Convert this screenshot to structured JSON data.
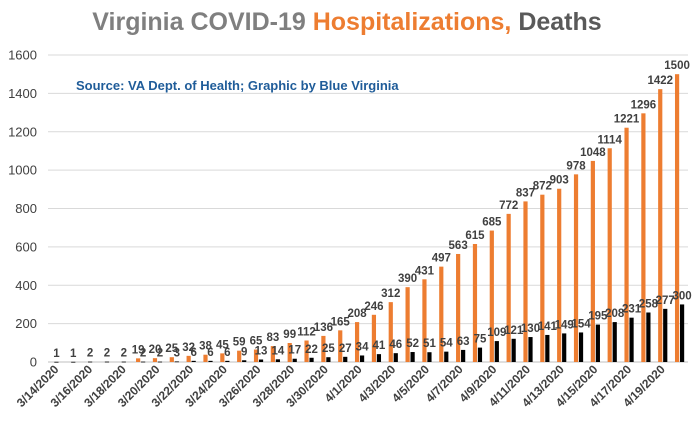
{
  "title": {
    "part1": "Virginia COVID-19 ",
    "part2": "Hospitalizations,",
    "part3": " Deaths"
  },
  "source_note": "Source: VA Dept. of Health; Graphic by Blue Virginia",
  "colors": {
    "hospitalizations": "#ed7d31",
    "deaths": "#000000",
    "grid": "#d9d9d9",
    "axis": "#bfbfbf"
  },
  "chart_data": {
    "type": "bar",
    "title": "Virginia COVID-19 Hospitalizations, Deaths",
    "categories": [
      "3/14/2020",
      "3/15/2020",
      "3/16/2020",
      "3/17/2020",
      "3/18/2020",
      "3/19/2020",
      "3/20/2020",
      "3/21/2020",
      "3/22/2020",
      "3/23/2020",
      "3/24/2020",
      "3/25/2020",
      "3/26/2020",
      "3/27/2020",
      "3/28/2020",
      "3/29/2020",
      "3/30/2020",
      "3/31/2020",
      "4/1/2020",
      "4/2/2020",
      "4/3/2020",
      "4/4/2020",
      "4/5/2020",
      "4/6/2020",
      "4/7/2020",
      "4/8/2020",
      "4/9/2020",
      "4/10/2020",
      "4/11/2020",
      "4/12/2020",
      "4/13/2020",
      "4/14/2020",
      "4/15/2020",
      "4/16/2020",
      "4/17/2020",
      "4/18/2020",
      "4/19/2020",
      "4/20/2020"
    ],
    "visible_tick_labels": [
      "3/14/2020",
      "3/16/2020",
      "3/18/2020",
      "3/20/2020",
      "3/22/2020",
      "3/24/2020",
      "3/26/2020",
      "3/28/2020",
      "3/30/2020",
      "4/1/2020",
      "4/3/2020",
      "4/5/2020",
      "4/7/2020",
      "4/9/2020",
      "4/11/2020",
      "4/13/2020",
      "4/15/2020",
      "4/17/2020",
      "4/19/2020"
    ],
    "series": [
      {
        "values": [
          null,
          null,
          null,
          null,
          null,
          19,
          20,
          25,
          32,
          38,
          45,
          59,
          65,
          83,
          99,
          112,
          136,
          165,
          208,
          246,
          312,
          390,
          431,
          497,
          563,
          615,
          685,
          772,
          837,
          872,
          903,
          978,
          1048,
          1114,
          1221,
          1296,
          1422,
          1500
        ]
      },
      {
        "values": [
          1,
          1,
          2,
          2,
          2,
          2,
          2,
          3,
          6,
          6,
          6,
          9,
          13,
          14,
          17,
          22,
          25,
          27,
          34,
          41,
          46,
          52,
          51,
          54,
          63,
          75,
          109,
          121,
          130,
          141,
          149,
          154,
          195,
          208,
          231,
          258,
          277,
          300
        ]
      }
    ],
    "ylim": [
      0,
      1600
    ],
    "yticks": [
      0,
      200,
      400,
      600,
      800,
      1000,
      1200,
      1400,
      1600
    ],
    "grid": true,
    "legend": "none"
  }
}
